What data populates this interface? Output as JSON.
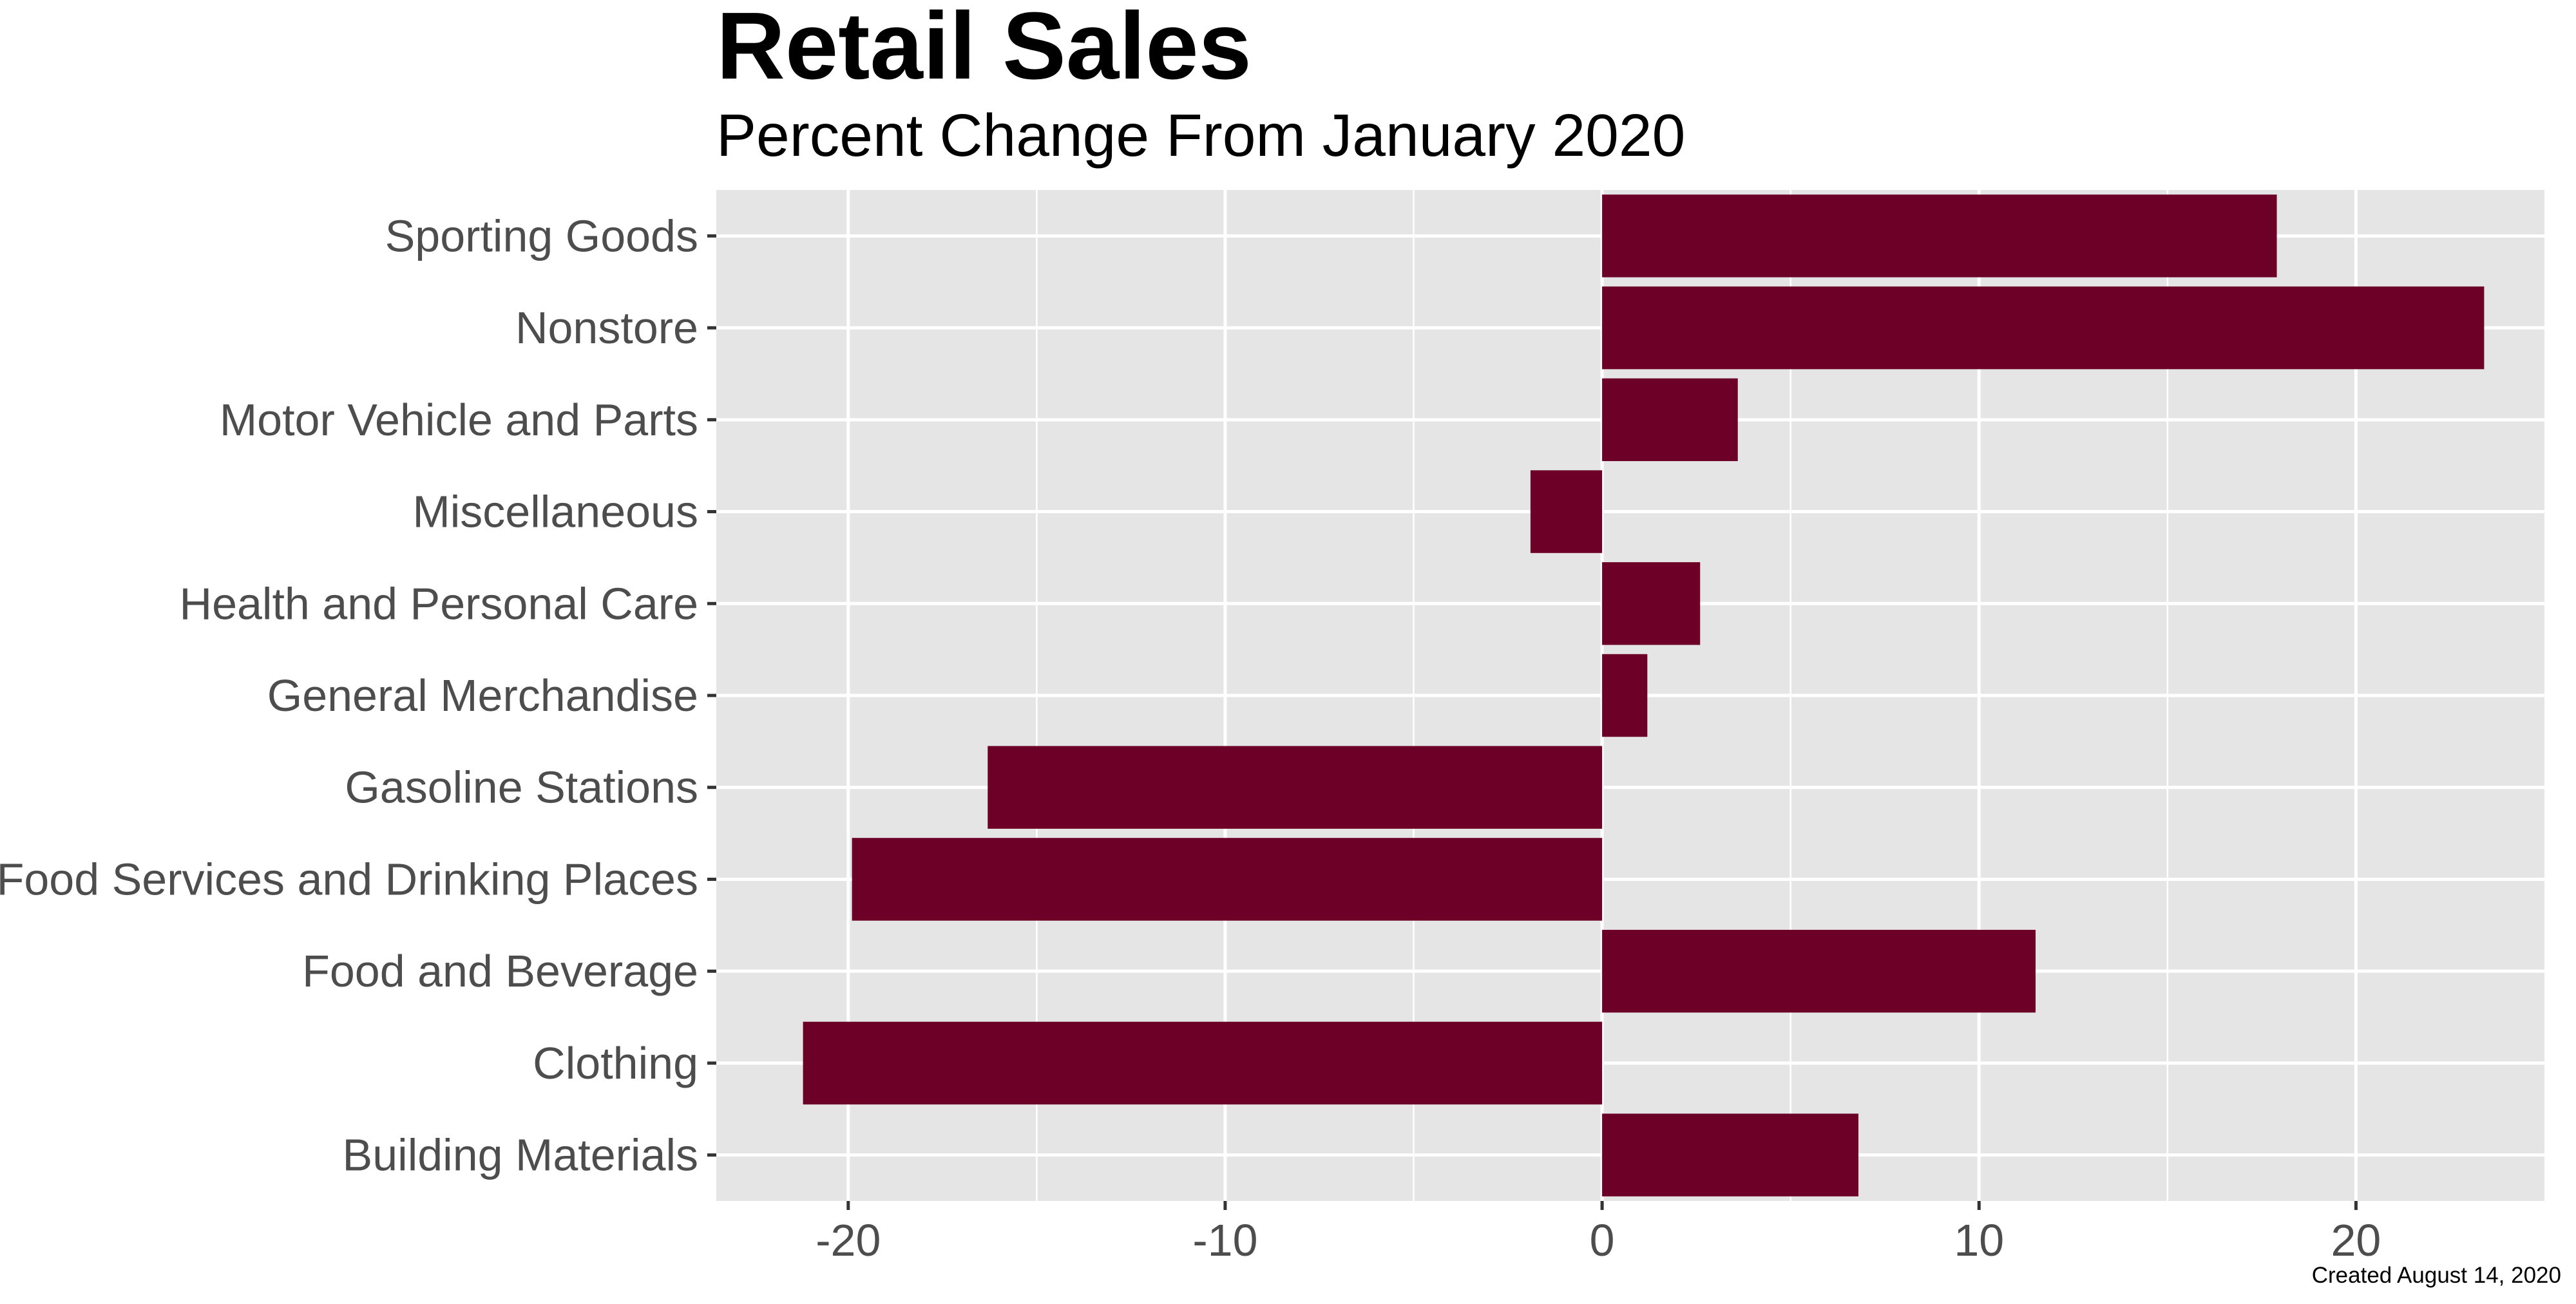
{
  "chart_data": {
    "type": "bar",
    "orientation": "horizontal",
    "title": "Retail Sales",
    "subtitle": "Percent Change From January 2020",
    "caption": "Created August 14, 2020",
    "xlabel": "",
    "ylabel": "",
    "xlim": [
      -23.5,
      25
    ],
    "x_ticks": [
      -20,
      -10,
      0,
      10,
      20
    ],
    "x_tick_labels": [
      "-20",
      "-10",
      "0",
      "10",
      "20"
    ],
    "x_minor_ticks": [
      -15,
      -5,
      5,
      15
    ],
    "grid": true,
    "categories": [
      "Sporting Goods",
      "Nonstore",
      "Motor Vehicle and Parts",
      "Miscellaneous",
      "Health and Personal Care",
      "General Merchandise",
      "Gasoline Stations",
      "Food Services and Drinking Places",
      "Food and Beverage",
      "Clothing",
      "Building Materials"
    ],
    "values": [
      17.9,
      23.4,
      3.6,
      -1.9,
      2.6,
      1.2,
      -16.3,
      -19.9,
      11.5,
      -21.2,
      6.8
    ],
    "bar_color": "#6d0026",
    "panel_background": "#e5e5e5",
    "gridline_color": "#ffffff"
  }
}
